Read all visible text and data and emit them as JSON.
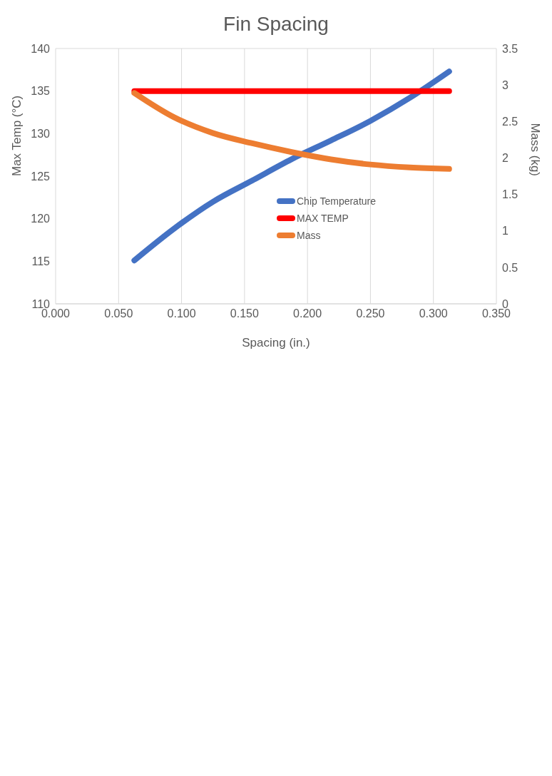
{
  "chart_data": {
    "type": "line",
    "title": "Fin Spacing",
    "xlabel": "Spacing (in.)",
    "ylabel": "Max Temp (°C)",
    "y2label": "Mass (kg)",
    "x": [
      0.0625,
      0.09375,
      0.125,
      0.15625,
      0.1875,
      0.21875,
      0.25,
      0.28125,
      0.3125
    ],
    "series": [
      {
        "name": "Chip Temperature",
        "color": "#4472c4",
        "values": [
          115.1,
          118.8,
          122.0,
          124.5,
          127.0,
          129.2,
          131.5,
          134.2,
          137.3
        ]
      },
      {
        "name": "MAX TEMP",
        "color": "#ff0000",
        "values": [
          135,
          135,
          135,
          135,
          135,
          135,
          135,
          135,
          135
        ]
      },
      {
        "name": "Mass",
        "color": "#ed7d31",
        "axis": "y2",
        "values": [
          2.89,
          2.56,
          2.34,
          2.2,
          2.08,
          1.98,
          1.91,
          1.87,
          1.85
        ]
      }
    ],
    "xlim": [
      0,
      0.35
    ],
    "xticks": [
      {
        "value": 0,
        "label": "0.000"
      },
      {
        "value": 0.05,
        "label": "0.050"
      },
      {
        "value": 0.1,
        "label": "0.100"
      },
      {
        "value": 0.15,
        "label": "0.150"
      },
      {
        "value": 0.2,
        "label": "0.200"
      },
      {
        "value": 0.25,
        "label": "0.250"
      },
      {
        "value": 0.3,
        "label": "0.300"
      },
      {
        "value": 0.35,
        "label": "0.350"
      }
    ],
    "ylim": [
      110,
      140
    ],
    "yticks": [
      110,
      115,
      120,
      125,
      130,
      135,
      140
    ],
    "y2lim": [
      0,
      3.5
    ],
    "y2ticks": [
      0,
      0.5,
      1,
      1.5,
      2,
      2.5,
      3,
      3.5
    ],
    "grid": true,
    "legend": "bottom",
    "marker": "none",
    "line_style": "solid"
  }
}
